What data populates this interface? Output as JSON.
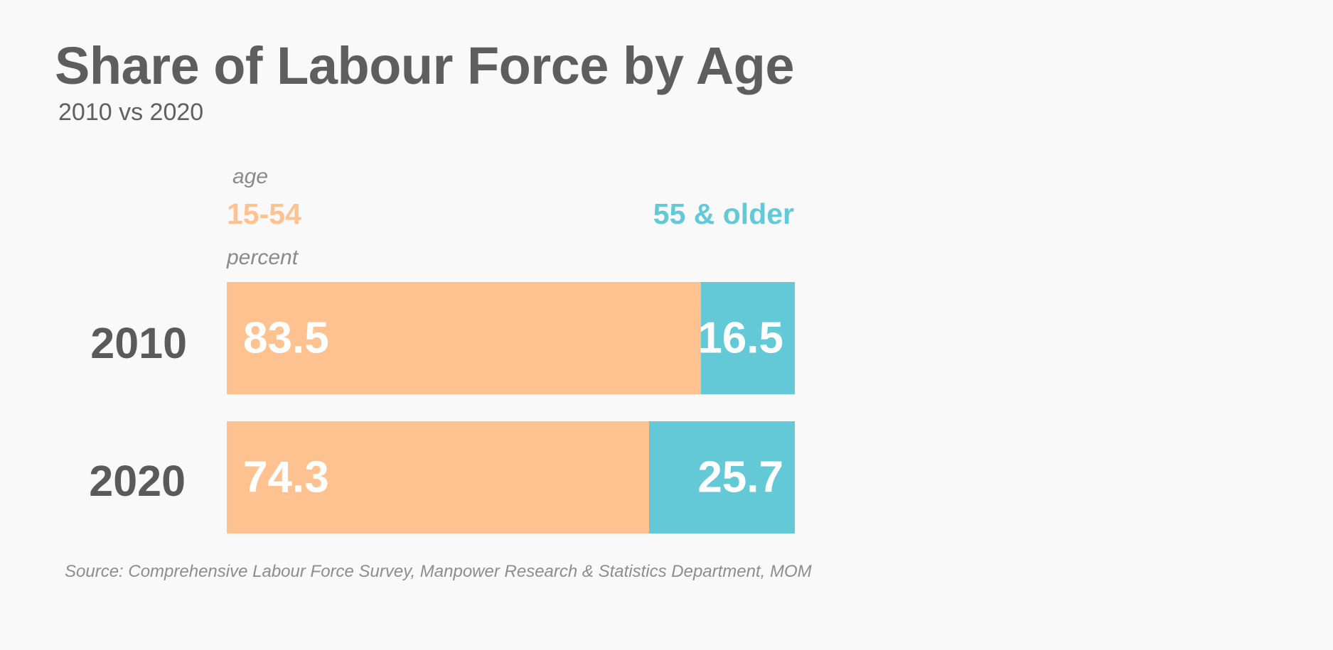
{
  "chart_data": {
    "type": "bar",
    "orientation": "horizontal",
    "stacked": true,
    "normalized": true,
    "title": "Share of Labour Force by Age",
    "subtitle": "2010 vs 2020",
    "legend_title": "age",
    "value_label": "percent",
    "categories": [
      "2010",
      "2020"
    ],
    "series": [
      {
        "name": "15-54",
        "values": [
          83.5,
          74.3
        ],
        "color": "#fdc28f"
      },
      {
        "name": "55 & older",
        "values": [
          16.5,
          25.7
        ],
        "color": "#63c9d6"
      }
    ],
    "xlim": [
      0,
      100
    ],
    "grid": false,
    "legend_placement": "top",
    "source": "Source: Comprehensive Labour Force Survey, Manpower Research & Statistics Department, MOM"
  }
}
